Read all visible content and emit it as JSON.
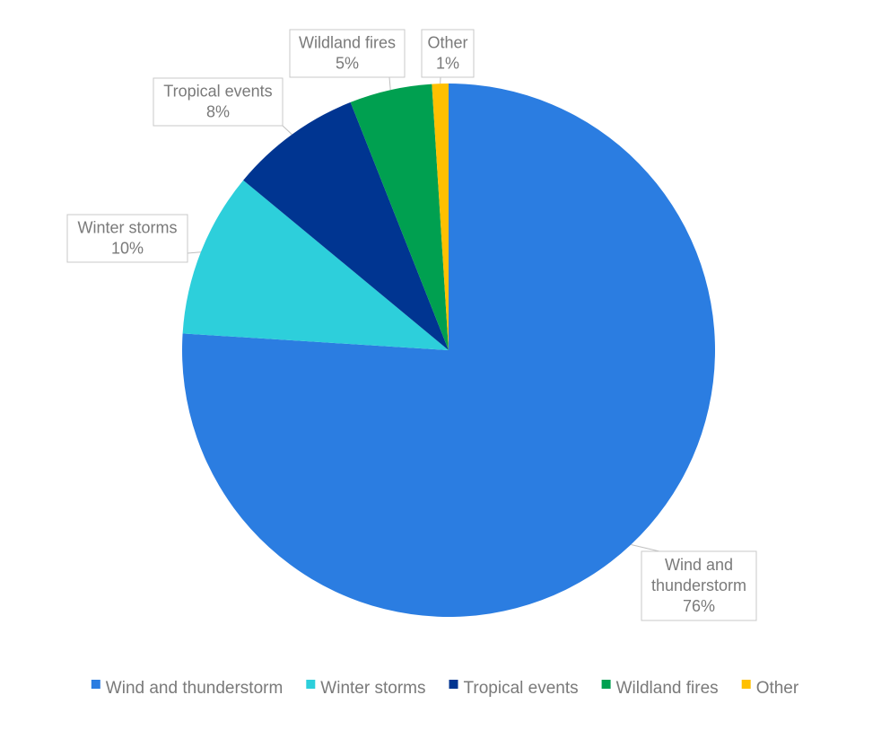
{
  "chart_data": {
    "type": "pie",
    "title": "",
    "categories": [
      "Wind and thunderstorm",
      "Winter storms",
      "Tropical events",
      "Wildland fires",
      "Other"
    ],
    "values": [
      76,
      10,
      8,
      5,
      1
    ],
    "data_labels": [
      [
        "Wind and",
        "thunderstorm",
        "76%"
      ],
      [
        "Winter storms",
        "10%"
      ],
      [
        "Tropical events",
        "8%"
      ],
      [
        "Wildland fires",
        "5%"
      ],
      [
        "Other",
        "1%"
      ]
    ],
    "colors": [
      "#2b7de1",
      "#2dcfdb",
      "#003591",
      "#00a050",
      "#ffc000"
    ],
    "legend_position": "bottom",
    "start_angle_deg": 0,
    "direction": "clockwise"
  }
}
